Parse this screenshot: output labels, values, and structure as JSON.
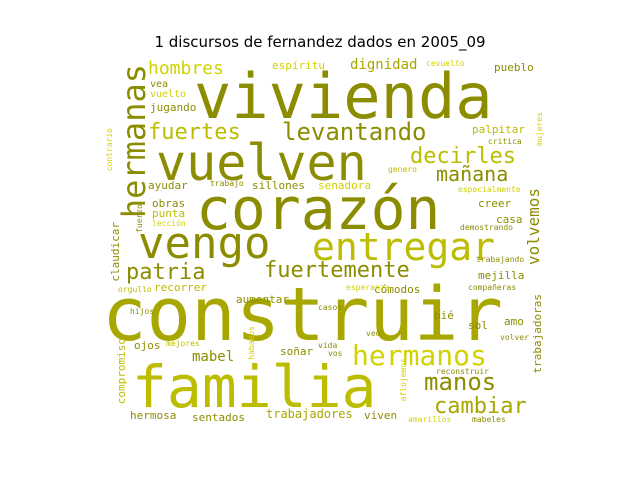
{
  "title": "1 discursos de fernandez dados en 2005_09",
  "colors": {
    "dark_olive": "#8c8c00",
    "olive": "#a7a700",
    "yellow_olive": "#bcbc00",
    "bright_yellow": "#d2d200",
    "pale_yellow": "#c8c83c"
  },
  "words": {
    "construir": "construir",
    "vivienda": "vivienda",
    "familia": "familia",
    "corazon": "corazón",
    "vuelven": "vuelven",
    "vengo": "vengo",
    "entregar": "entregar",
    "hermanas": "hermanas",
    "hermanos": "hermanos",
    "fuertes": "fuertes",
    "levantando": "levantando",
    "decirles": "decirles",
    "manana": "mañana",
    "patria": "patria",
    "fuertemente": "fuertemente",
    "manos": "manos",
    "cambiar": "cambiar",
    "volvemos": "volvemos",
    "hombres": "hombres",
    "dignidad": "dignidad",
    "espiritu": "espíritu",
    "cevuelto": "cevuelto",
    "pueblo": "pueblo",
    "vea": "vea",
    "vuelto": "vuelto",
    "jugando": "jugando",
    "palpitar": "palpitar",
    "critica": "critica",
    "mujeres": "mujeres",
    "contrario": "contrario",
    "ayudar": "ayudar",
    "trabajo": "trabajo",
    "sillones": "sillones",
    "senadora": "senadora",
    "genero": "genero",
    "especialmente": "especialmente",
    "obras": "obras",
    "punta": "punta",
    "leccion": "lección",
    "fuerzo": "fuerzo",
    "creer": "creer",
    "casa": "casa",
    "demostrando": "demostrando",
    "claudicar": "claudicar",
    "trabajando": "trabajando",
    "mejilla": "mejilla",
    "orgullo": "orgullo",
    "recorrer": "recorrer",
    "comodos": "cómodos",
    "companeras": "compañeras",
    "trabajadoras": "trabajadoras",
    "hijos": "hijos",
    "casos": "casos",
    "pie": "pié",
    "sol": "sol",
    "amo": "amo",
    "volver": "volver",
    "veo": "veo",
    "ojos": "ojos",
    "mejores": "mejores",
    "mabel": "mabel",
    "habamos": "habamos",
    "sonar": "soñar",
    "vida": "vida",
    "vos": "vos",
    "compromiso": "compromiso",
    "aflojemos": "aflojemos",
    "reconstruir": "reconstruir",
    "hermosa": "hermosa",
    "sentados": "sentados",
    "trabajadores": "trabajadores",
    "viven": "viven",
    "amarillos": "amarillos",
    "mabeles": "mabeles",
    "esperanza": "esperanza",
    "aumentar": "aumentar"
  }
}
